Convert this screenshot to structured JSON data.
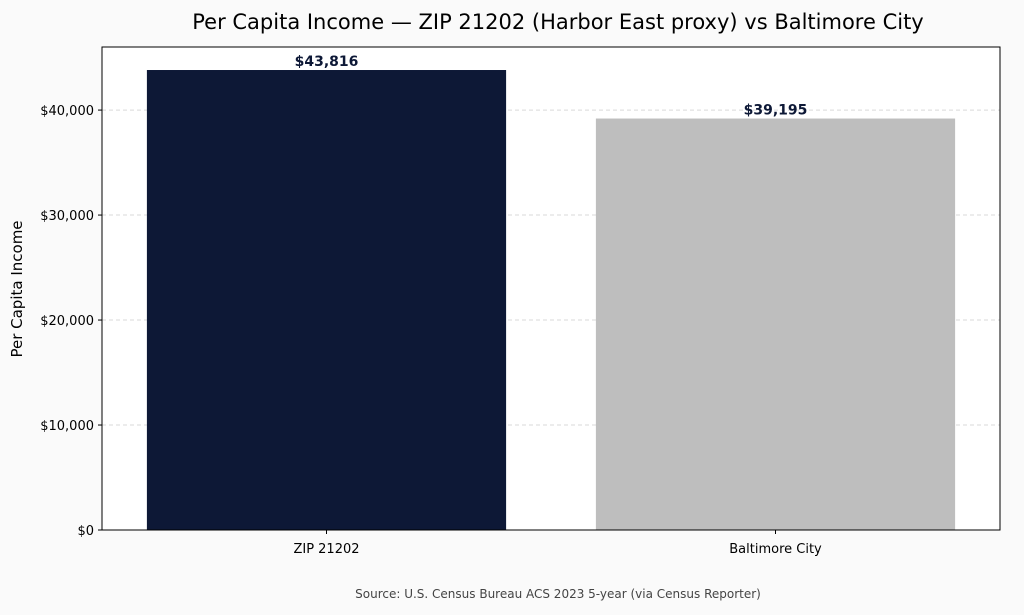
{
  "chart_data": {
    "type": "bar",
    "title": "Per Capita Income — ZIP 21202 (Harbor East proxy) vs Baltimore City",
    "xlabel": "",
    "ylabel": "Per Capita Income",
    "categories": [
      "ZIP 21202",
      "Baltimore City"
    ],
    "values": [
      43816,
      39195
    ],
    "data_labels": [
      "$43,816",
      "$39,195"
    ],
    "colors": [
      "#0d1836",
      "#bebebe"
    ],
    "label_color": "#0d1836",
    "ylim": [
      0,
      46008
    ],
    "yticks": [
      0,
      10000,
      20000,
      30000,
      40000
    ],
    "ytick_labels": [
      "$0",
      "$10,000",
      "$20,000",
      "$30,000",
      "$40,000"
    ],
    "grid": "y dashed",
    "legend": "none",
    "source": "Source: U.S. Census Bureau ACS 2023 5-year (via Census Reporter)"
  }
}
